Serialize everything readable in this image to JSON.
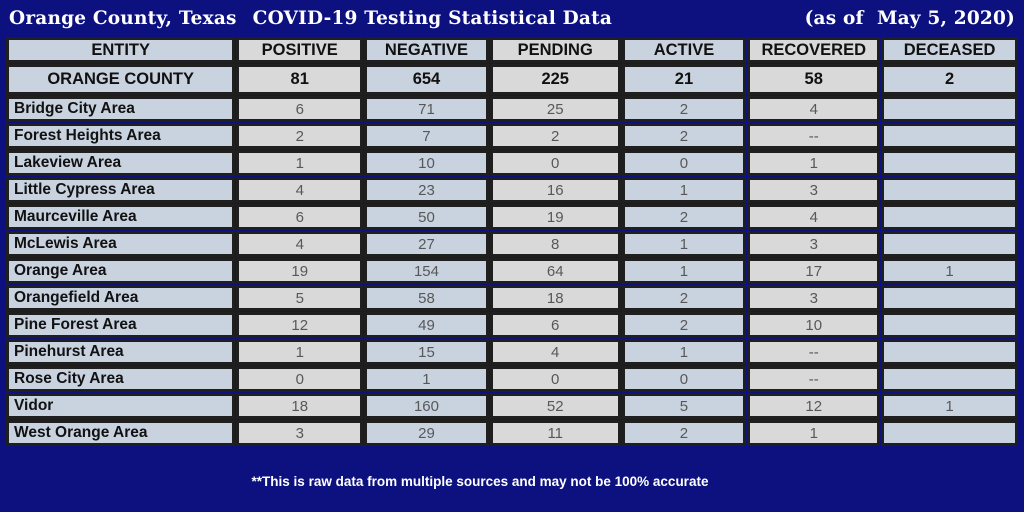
{
  "title": {
    "left_part1": "Orange County, Texas",
    "left_part2": "COVID-19 Testing Statistical Data",
    "right": "(as of  May 5, 2020)"
  },
  "footer": {
    "note": "**This is raw data from multiple sources and may not be 100% accurate"
  },
  "colors": {
    "background": "#0d1180",
    "cell_border": "#1f1f1f",
    "cell_blue": "#c9d3e0",
    "cell_gray": "#d9d9d9",
    "text_dark": "#111111",
    "text_value": "#585858",
    "title_text": "#ffffff"
  },
  "table": {
    "columns": [
      "ENTITY",
      "POSITIVE",
      "NEGATIVE",
      "PENDING",
      "ACTIVE",
      "RECOVERED",
      "DECEASED"
    ],
    "summary_row": {
      "entity": "ORANGE COUNTY",
      "values": [
        "81",
        "654",
        "225",
        "21",
        "58",
        "2"
      ]
    },
    "rows": [
      {
        "entity": "Bridge City Area",
        "values": [
          "6",
          "71",
          "25",
          "2",
          "4",
          ""
        ]
      },
      {
        "entity": "Forest Heights Area",
        "values": [
          "2",
          "7",
          "2",
          "2",
          "--",
          ""
        ]
      },
      {
        "entity": "Lakeview Area",
        "values": [
          "1",
          "10",
          "0",
          "0",
          "1",
          ""
        ]
      },
      {
        "entity": "Little Cypress Area",
        "values": [
          "4",
          "23",
          "16",
          "1",
          "3",
          ""
        ]
      },
      {
        "entity": "Maurceville Area",
        "values": [
          "6",
          "50",
          "19",
          "2",
          "4",
          ""
        ]
      },
      {
        "entity": "McLewis Area",
        "values": [
          "4",
          "27",
          "8",
          "1",
          "3",
          ""
        ]
      },
      {
        "entity": "Orange Area",
        "values": [
          "19",
          "154",
          "64",
          "1",
          "17",
          "1"
        ]
      },
      {
        "entity": "Orangefield Area",
        "values": [
          "5",
          "58",
          "18",
          "2",
          "3",
          ""
        ]
      },
      {
        "entity": "Pine Forest Area",
        "values": [
          "12",
          "49",
          "6",
          "2",
          "10",
          ""
        ]
      },
      {
        "entity": "Pinehurst Area",
        "values": [
          "1",
          "15",
          "4",
          "1",
          "--",
          ""
        ]
      },
      {
        "entity": "Rose City Area",
        "values": [
          "0",
          "1",
          "0",
          "0",
          "--",
          ""
        ]
      },
      {
        "entity": "Vidor",
        "values": [
          "18",
          "160",
          "52",
          "5",
          "12",
          "1"
        ]
      },
      {
        "entity": "West Orange Area",
        "values": [
          "3",
          "29",
          "11",
          "2",
          "1",
          ""
        ]
      }
    ]
  },
  "chart_data": {
    "type": "table",
    "title": "Orange County, Texas COVID-19 Testing Statistical Data (as of May 5, 2020)",
    "columns": [
      "ENTITY",
      "POSITIVE",
      "NEGATIVE",
      "PENDING",
      "ACTIVE",
      "RECOVERED",
      "DECEASED"
    ],
    "rows": [
      [
        "ORANGE COUNTY",
        81,
        654,
        225,
        21,
        58,
        2
      ],
      [
        "Bridge City Area",
        6,
        71,
        25,
        2,
        4,
        null
      ],
      [
        "Forest Heights Area",
        2,
        7,
        2,
        2,
        "--",
        null
      ],
      [
        "Lakeview Area",
        1,
        10,
        0,
        0,
        1,
        null
      ],
      [
        "Little Cypress Area",
        4,
        23,
        16,
        1,
        3,
        null
      ],
      [
        "Maurceville Area",
        6,
        50,
        19,
        2,
        4,
        null
      ],
      [
        "McLewis Area",
        4,
        27,
        8,
        1,
        3,
        null
      ],
      [
        "Orange Area",
        19,
        154,
        64,
        1,
        17,
        1
      ],
      [
        "Orangefield Area",
        5,
        58,
        18,
        2,
        3,
        null
      ],
      [
        "Pine Forest Area",
        12,
        49,
        6,
        2,
        10,
        null
      ],
      [
        "Pinehurst Area",
        1,
        15,
        4,
        1,
        "--",
        null
      ],
      [
        "Rose City Area",
        0,
        1,
        0,
        0,
        "--",
        null
      ],
      [
        "Vidor",
        18,
        160,
        52,
        5,
        12,
        1
      ],
      [
        "West Orange Area",
        3,
        29,
        11,
        2,
        1,
        null
      ]
    ],
    "footnote": "**This is raw data from multiple sources and may not be 100% accurate"
  }
}
